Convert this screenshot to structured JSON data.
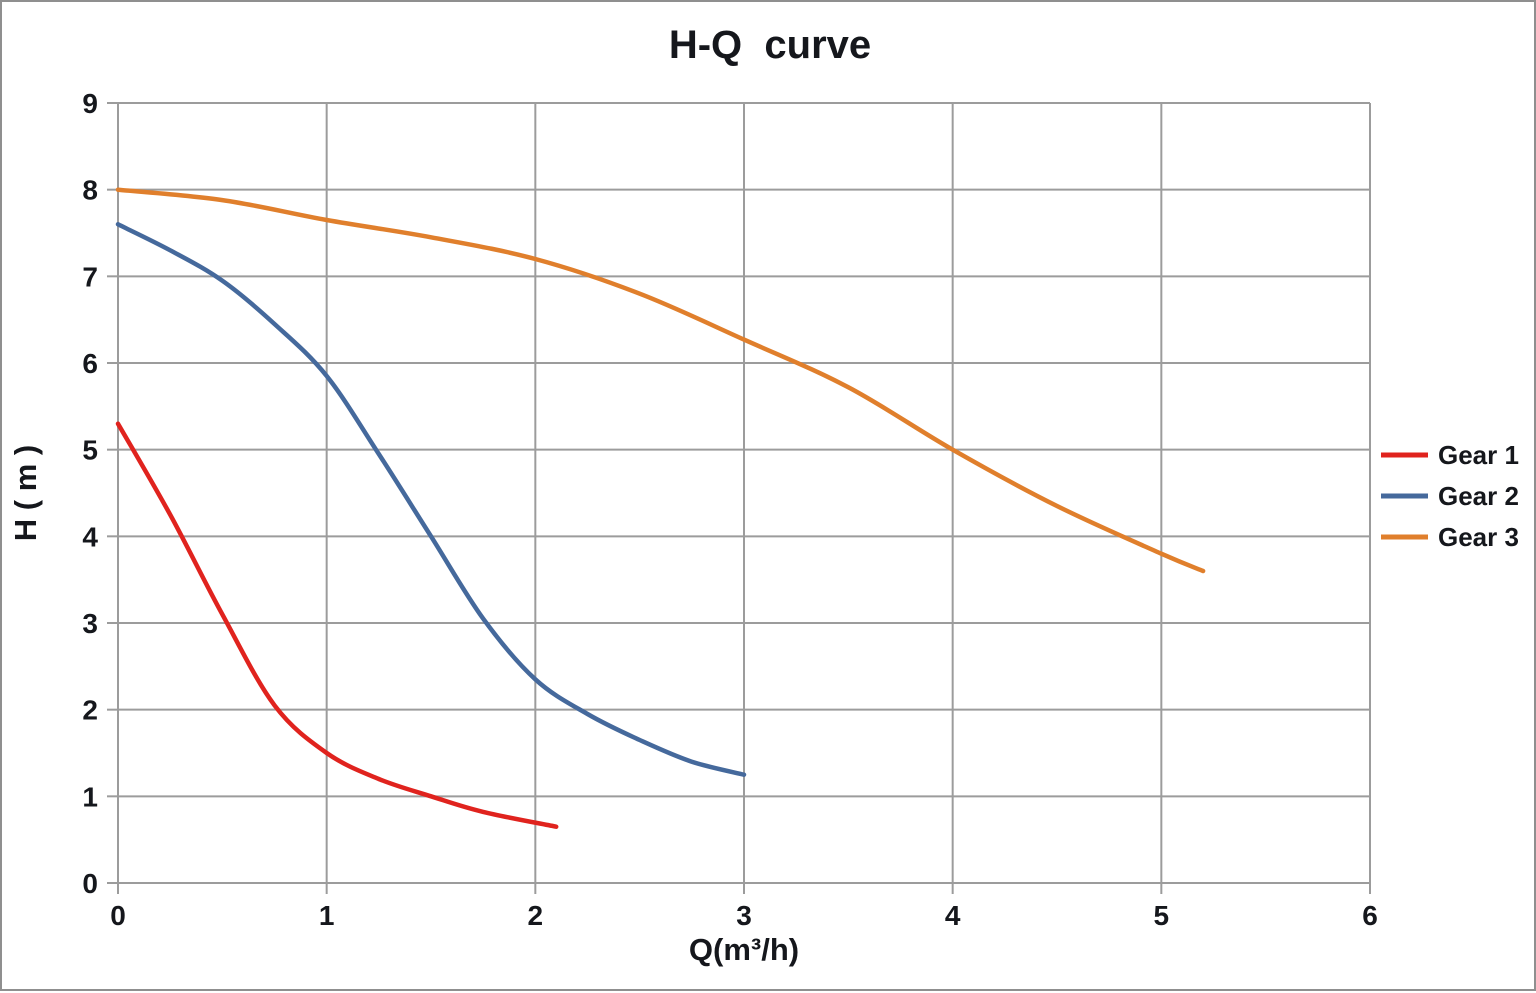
{
  "chart_data": {
    "type": "line",
    "title": "H-Q  curve",
    "xlabel": "Q(m³/h)",
    "ylabel": "H ( m )",
    "xlim": [
      0,
      6
    ],
    "ylim": [
      0,
      9
    ],
    "x_ticks": [
      0,
      1,
      2,
      3,
      4,
      5,
      6
    ],
    "y_ticks": [
      0,
      1,
      2,
      3,
      4,
      5,
      6,
      7,
      8,
      9
    ],
    "grid": true,
    "legend_position": "right",
    "colors": {
      "gridline": "#9c9c9c",
      "axis": "#9c9c9c",
      "text": "#15171c",
      "series_red": "#e0231e",
      "series_blue": "#45699c",
      "series_orange": "#e07f2c"
    },
    "series": [
      {
        "name": "Gear 1",
        "color": "#e0231e",
        "x": [
          0,
          0.25,
          0.5,
          0.75,
          1.0,
          1.25,
          1.5,
          1.75,
          2.1
        ],
        "y": [
          5.3,
          4.25,
          3.1,
          2.05,
          1.5,
          1.2,
          1.0,
          0.82,
          0.65
        ]
      },
      {
        "name": "Gear 2",
        "color": "#45699c",
        "x": [
          0,
          0.25,
          0.5,
          0.75,
          1.0,
          1.25,
          1.5,
          1.75,
          2.0,
          2.25,
          2.5,
          2.75,
          3.0
        ],
        "y": [
          7.6,
          7.3,
          6.95,
          6.45,
          5.85,
          4.95,
          4.0,
          3.05,
          2.35,
          1.95,
          1.65,
          1.4,
          1.25
        ]
      },
      {
        "name": "Gear 3",
        "color": "#e07f2c",
        "x": [
          0,
          0.5,
          1.0,
          1.5,
          2.0,
          2.5,
          3.0,
          3.5,
          4.0,
          4.5,
          5.0,
          5.2
        ],
        "y": [
          8.0,
          7.88,
          7.65,
          7.45,
          7.2,
          6.8,
          6.27,
          5.72,
          5.0,
          4.35,
          3.8,
          3.6
        ]
      }
    ]
  }
}
